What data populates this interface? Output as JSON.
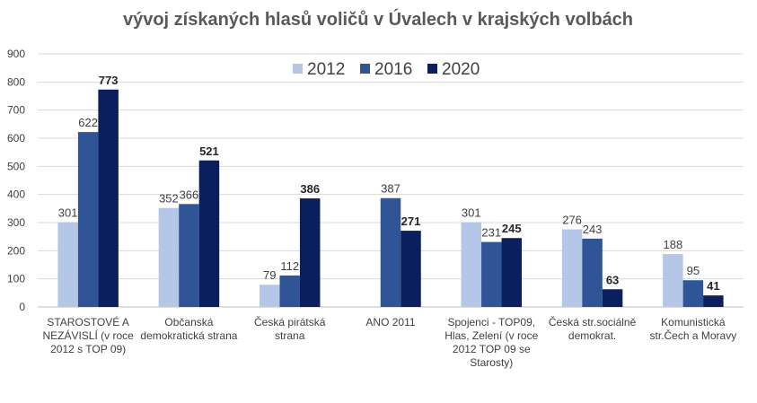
{
  "chart_data": {
    "type": "bar",
    "title": "vývoj získaných hlasů voličů v Úvalech v krajských volbách",
    "categories": [
      [
        "STAROSTOVÉ A",
        "NEZÁVISLÍ (v roce",
        "2012 s TOP 09)"
      ],
      [
        "Občanská",
        "demokratická strana"
      ],
      [
        "Česká pirátská",
        "strana"
      ],
      [
        "ANO 2011"
      ],
      [
        "Spojenci - TOP09,",
        "Hlas, Zelení (v roce",
        "2012 TOP 09 se",
        "Starosty)"
      ],
      [
        "Česká str.sociálně",
        "demokrat."
      ],
      [
        "Komunistická",
        "str.Čech a Moravy"
      ]
    ],
    "series": [
      {
        "name": "2012",
        "color": "#b4c7e7",
        "bold_labels": false,
        "values": [
          301,
          352,
          79,
          null,
          301,
          276,
          188
        ]
      },
      {
        "name": "2016",
        "color": "#2f5597",
        "bold_labels": false,
        "values": [
          622,
          366,
          112,
          387,
          231,
          243,
          95
        ]
      },
      {
        "name": "2020",
        "color": "#0b1f5e",
        "bold_labels": true,
        "values": [
          773,
          521,
          386,
          271,
          245,
          63,
          41
        ]
      }
    ],
    "ylim": [
      0,
      900
    ],
    "yticks": [
      0,
      100,
      200,
      300,
      400,
      500,
      600,
      700,
      800,
      900
    ],
    "grid": true,
    "legend_position": "top-center"
  }
}
